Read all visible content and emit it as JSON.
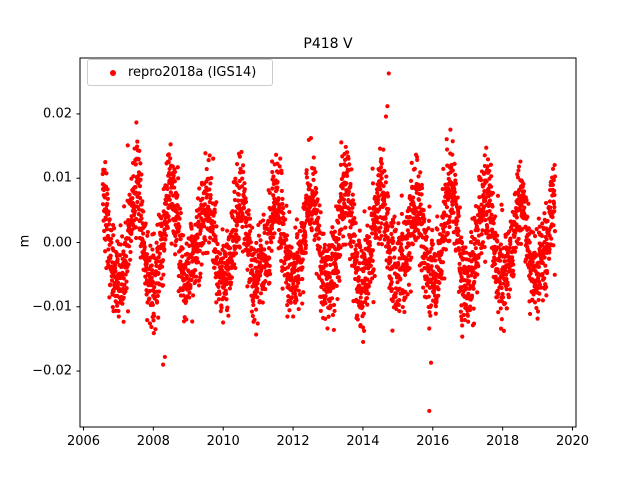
{
  "figure": {
    "title": "P418 V",
    "ylabel": "m"
  },
  "legend": {
    "label": "repro2018a (IGS14)"
  },
  "chart_data": {
    "type": "scatter",
    "title": "P418 V",
    "xlabel": "",
    "ylabel": "m",
    "grid": false,
    "legend_position": "upper left",
    "xlim": [
      2005.9,
      2020.1
    ],
    "ylim": [
      -0.0287,
      0.0287
    ],
    "xticks": [
      2006,
      2008,
      2010,
      2012,
      2014,
      2016,
      2018,
      2020
    ],
    "xtick_labels": [
      "2006",
      "2008",
      "2010",
      "2012",
      "2014",
      "2016",
      "2018",
      "2020"
    ],
    "yticks": [
      -0.02,
      -0.01,
      0,
      0.01,
      0.02
    ],
    "ytick_labels": [
      "−0.02",
      "−0.01",
      "0.00",
      "0.01",
      "0.02"
    ],
    "series": [
      {
        "name": "repro2018a (IGS14)",
        "color": "#ff0000",
        "marker": "circle",
        "marker_px_radius": 2.1,
        "x_start": 2006.55,
        "x_end": 2019.5,
        "n_points": 3400,
        "pattern": "dense daily vertical-position residual time series with annual seasonal oscillation, most values within ±0.017 m",
        "annual_amplitude_m": 0.0062,
        "semiannual_amplitude_m": 0.0012,
        "noise_sd_m": 0.0036,
        "phase_year_fraction": 0.25,
        "seed": 42,
        "envelope_max_m": 0.0193,
        "outliers": [
          [
            2014.74,
            0.0263
          ],
          [
            2014.7,
            0.0212
          ],
          [
            2014.66,
            0.0196
          ],
          [
            2015.9,
            -0.0262
          ],
          [
            2015.95,
            -0.0187
          ],
          [
            2008.28,
            -0.019
          ],
          [
            2008.33,
            -0.0178
          ]
        ]
      }
    ]
  }
}
